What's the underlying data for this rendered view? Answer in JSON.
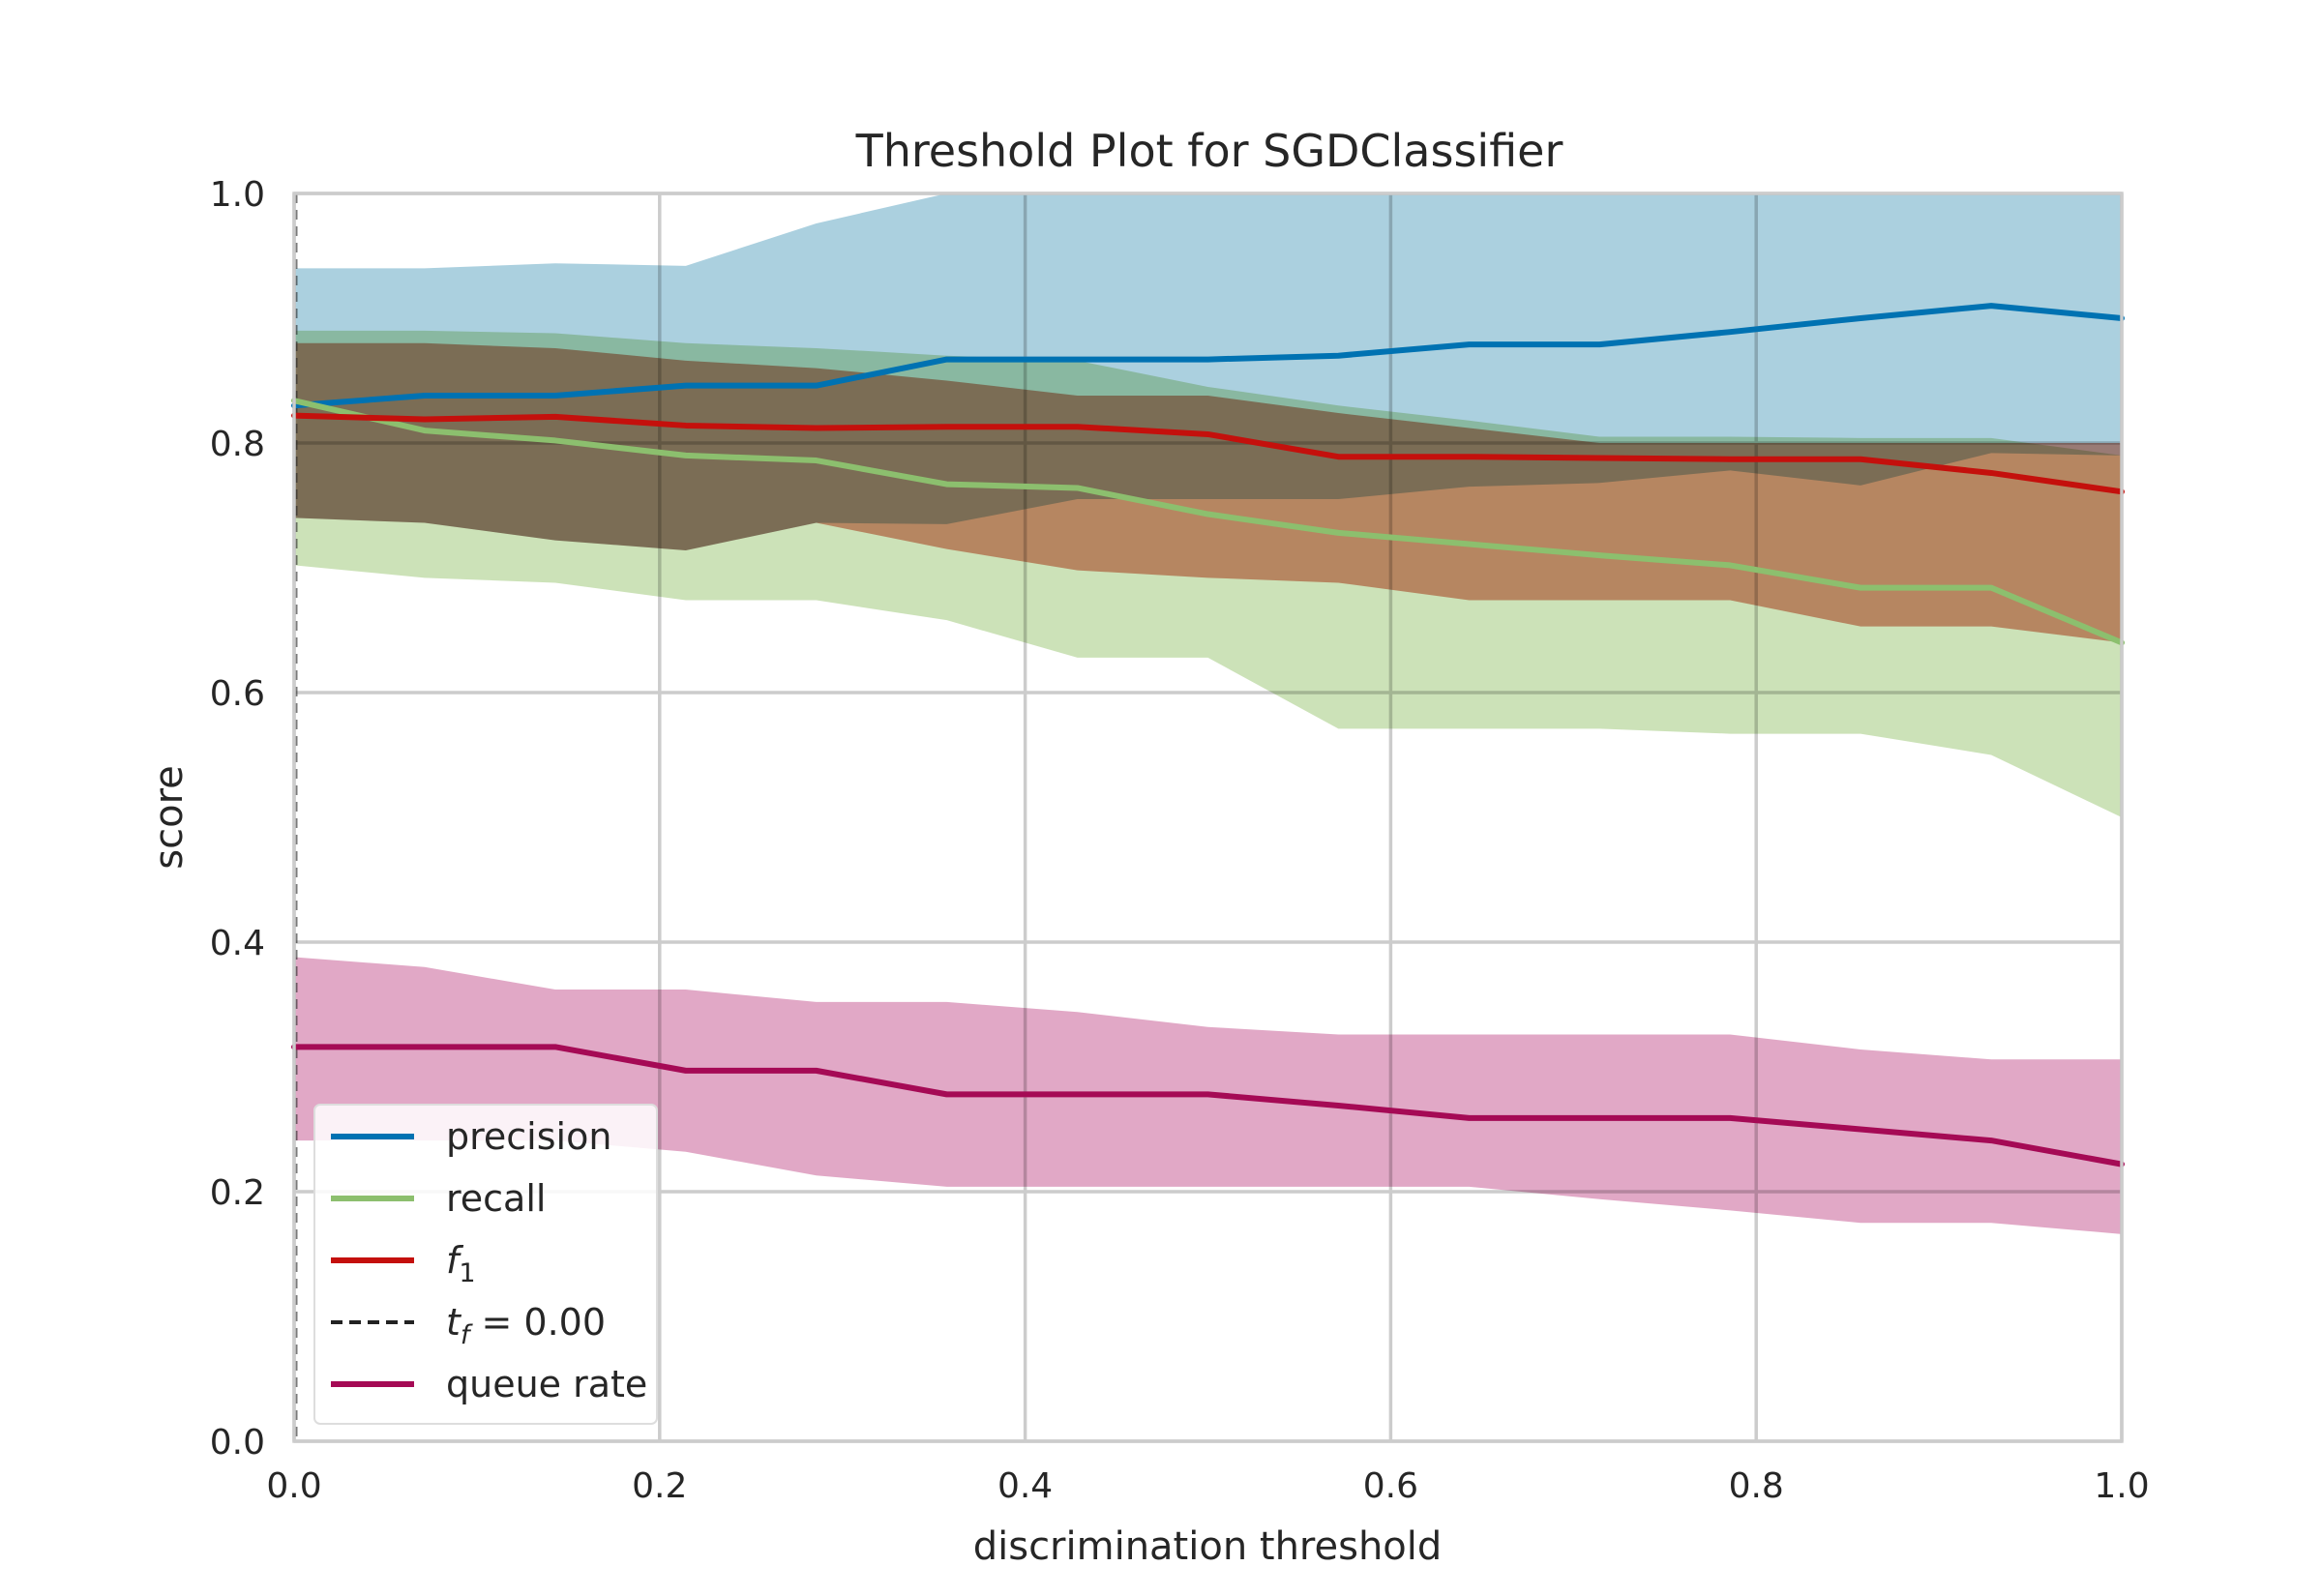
{
  "chart_data": {
    "type": "line",
    "title": "Threshold Plot for SGDClassifier",
    "xlabel": "discrimination threshold",
    "ylabel": "score",
    "xlim": [
      0.0,
      1.0
    ],
    "ylim": [
      0.0,
      1.0
    ],
    "xticks": [
      "0.0",
      "0.2",
      "0.4",
      "0.6",
      "0.8",
      "1.0"
    ],
    "yticks": [
      "0.0",
      "0.2",
      "0.4",
      "0.6",
      "0.8",
      "1.0"
    ],
    "grid": true,
    "legend_position": "lower-left",
    "x": [
      0.0,
      0.0714,
      0.1429,
      0.2143,
      0.2857,
      0.3571,
      0.4286,
      0.5,
      0.5714,
      0.6429,
      0.7143,
      0.7857,
      0.8571,
      0.9286,
      1.0
    ],
    "series": [
      {
        "name": "precision",
        "color": "#0072b2",
        "band_color": "#a6cddd",
        "values": [
          0.83,
          0.838,
          0.838,
          0.846,
          0.846,
          0.867,
          0.867,
          0.867,
          0.87,
          0.879,
          0.879,
          0.889,
          0.9,
          0.91,
          0.9
        ],
        "upper": [
          0.94,
          0.94,
          0.944,
          0.942,
          0.976,
          1.0,
          1.0,
          1.0,
          1.0,
          1.0,
          1.0,
          1.0,
          1.0,
          1.0,
          1.0
        ],
        "lower": [
          0.74,
          0.736,
          0.722,
          0.714,
          0.736,
          0.735,
          0.755,
          0.755,
          0.755,
          0.765,
          0.768,
          0.778,
          0.766,
          0.792,
          0.79
        ]
      },
      {
        "name": "recall",
        "color": "#8cbf6e",
        "band_color": "#c9e0b4",
        "values": [
          0.834,
          0.81,
          0.802,
          0.79,
          0.786,
          0.767,
          0.764,
          0.743,
          0.728,
          0.719,
          0.71,
          0.702,
          0.684,
          0.684,
          0.64
        ],
        "upper": [
          0.89,
          0.89,
          0.888,
          0.88,
          0.876,
          0.87,
          0.866,
          0.845,
          0.83,
          0.818,
          0.805,
          0.805,
          0.804,
          0.804,
          0.79
        ],
        "lower": [
          0.702,
          0.692,
          0.688,
          0.674,
          0.674,
          0.658,
          0.628,
          0.628,
          0.571,
          0.571,
          0.571,
          0.567,
          0.567,
          0.55,
          0.5
        ]
      },
      {
        "name": "f1",
        "color": "#c4100c",
        "band_color": "#e3917f",
        "values": [
          0.822,
          0.819,
          0.821,
          0.814,
          0.812,
          0.813,
          0.813,
          0.807,
          0.789,
          0.789,
          0.788,
          0.787,
          0.787,
          0.776,
          0.761
        ],
        "upper": [
          0.88,
          0.88,
          0.876,
          0.866,
          0.86,
          0.85,
          0.838,
          0.838,
          0.824,
          0.812,
          0.8,
          0.8,
          0.8,
          0.8,
          0.8
        ],
        "lower": [
          0.74,
          0.736,
          0.722,
          0.714,
          0.736,
          0.715,
          0.698,
          0.692,
          0.688,
          0.674,
          0.674,
          0.674,
          0.653,
          0.653,
          0.64
        ]
      },
      {
        "name": "queue rate",
        "color": "#a50a55",
        "band_color": "#dfa3c3",
        "values": [
          0.316,
          0.316,
          0.316,
          0.297,
          0.297,
          0.278,
          0.278,
          0.278,
          0.269,
          0.259,
          0.259,
          0.259,
          0.25,
          0.241,
          0.222
        ],
        "upper": [
          0.388,
          0.38,
          0.362,
          0.362,
          0.352,
          0.352,
          0.344,
          0.332,
          0.326,
          0.326,
          0.326,
          0.326,
          0.314,
          0.306,
          0.306
        ],
        "lower": [
          0.241,
          0.241,
          0.241,
          0.232,
          0.213,
          0.204,
          0.204,
          0.204,
          0.204,
          0.204,
          0.194,
          0.185,
          0.175,
          0.175,
          0.166
        ]
      }
    ],
    "threshold_line": {
      "value": 0.0,
      "color": "#222222"
    },
    "legend": [
      {
        "label": "precision",
        "color": "#0072b2",
        "style": "solid"
      },
      {
        "label": "recall",
        "color": "#8cbf6e",
        "style": "solid"
      },
      {
        "label": "f",
        "sub": "1",
        "color": "#c4100c",
        "style": "solid"
      },
      {
        "label": "t",
        "sub": "f",
        "suffix": " = 0.00",
        "color": "#222222",
        "style": "dashed"
      },
      {
        "label": "queue rate",
        "color": "#a50a55",
        "style": "solid"
      }
    ]
  }
}
